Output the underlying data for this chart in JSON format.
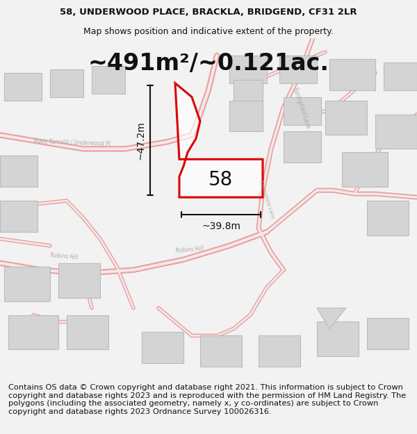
{
  "title_line1": "58, UNDERWOOD PLACE, BRACKLA, BRIDGEND, CF31 2LR",
  "title_line2": "Map shows position and indicative extent of the property.",
  "area_text": "~491m²/~0.121ac.",
  "label_58": "58",
  "dim_vertical": "~47.2m",
  "dim_horizontal": "~39.8m",
  "footer_text": "Contains OS data © Crown copyright and database right 2021. This information is subject to Crown copyright and database rights 2023 and is reproduced with the permission of HM Land Registry. The polygons (including the associated geometry, namely x, y co-ordinates) are subject to Crown copyright and database rights 2023 Ordnance Survey 100026316.",
  "bg_color": "#f2f2f2",
  "map_bg": "#ece9e9",
  "road_outer": "#e8a0a0",
  "road_inner": "#f5e8e8",
  "building_edge": "#bbbbbb",
  "building_fill": "#d4d4d4",
  "highlight_color": "#dd0000",
  "dim_color": "#111111",
  "text_color": "#111111",
  "road_label_color": "#aaaaaa",
  "title_fontsize": 9.5,
  "subtitle_fontsize": 9.0,
  "area_fontsize": 24,
  "label_fontsize": 20,
  "dim_fontsize": 10,
  "footer_fontsize": 8.2,
  "road_lw_outer": 5,
  "road_lw_inner": 2.5
}
